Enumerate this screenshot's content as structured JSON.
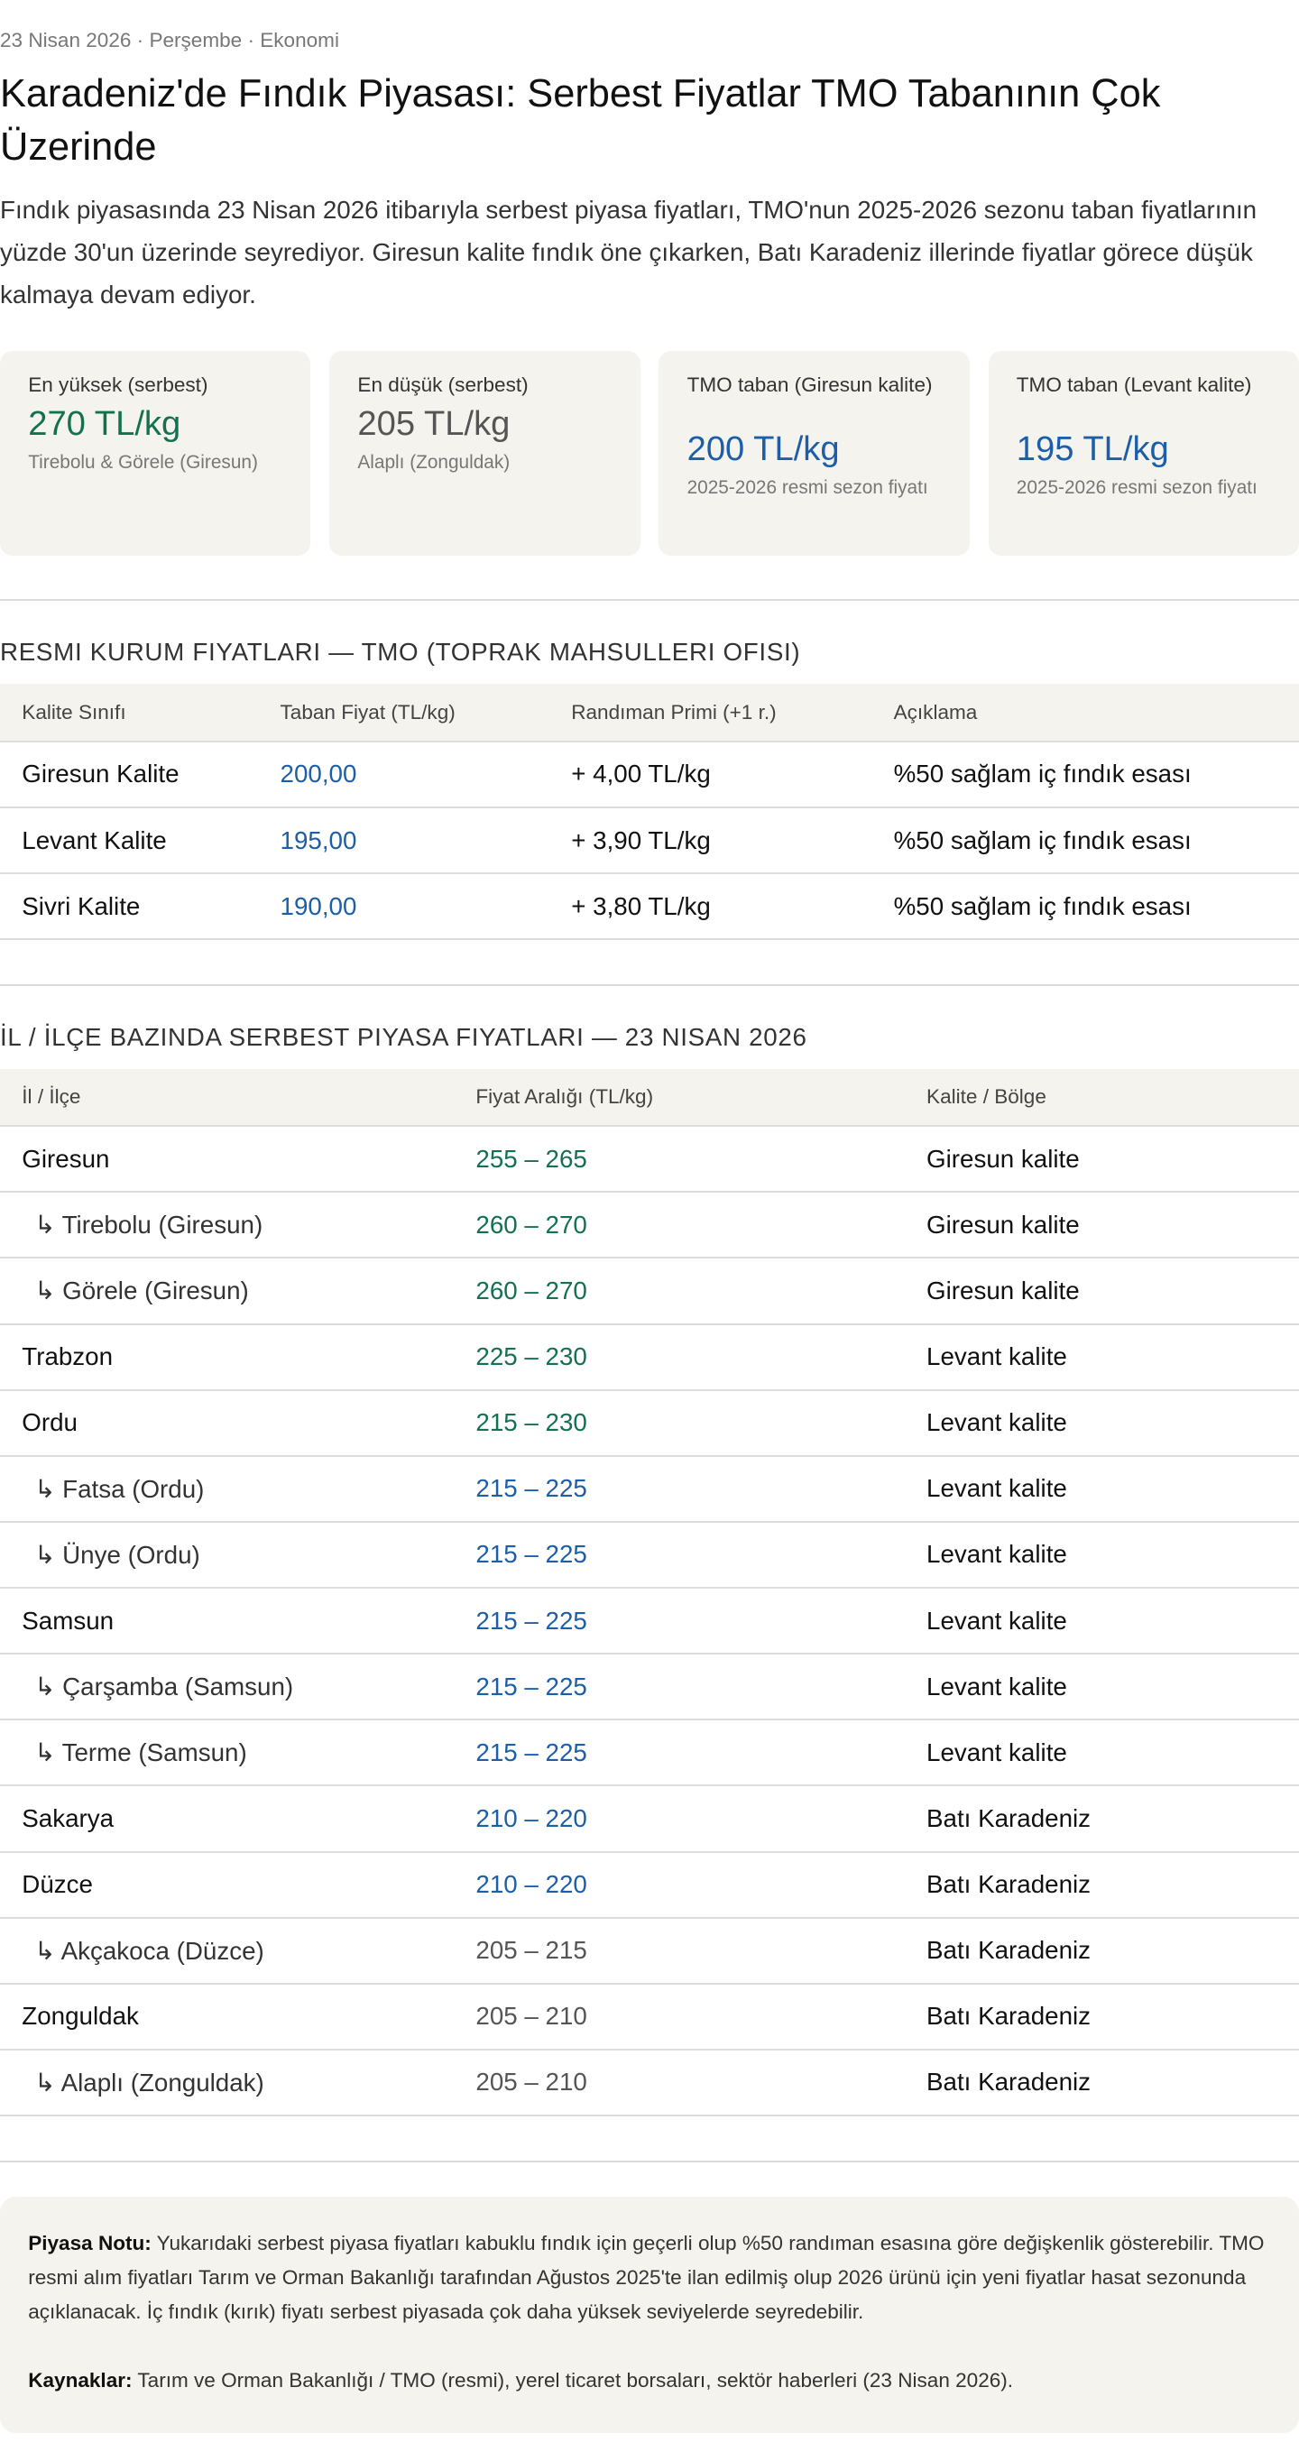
{
  "meta": "23 Nisan 2026 · Perşembe · Ekonomi",
  "title": "Karadeniz'de Fındık Piyasası: Serbest Fiyatlar TMO Tabanının Çok Üzerinde",
  "lede": "Fındık piyasasında 23 Nisan 2026 itibarıyla serbest piyasa fiyatları, TMO'nun 2025-2026 sezonu taban fiyatlarının yüzde 30'un üzerinde seyrediyor. Giresun kalite fındık öne çıkarken, Batı Karadeniz illerinde fiyatlar görece düşük kalmaya devam ediyor.",
  "colors": {
    "green": "#14714f",
    "blue": "#1d5ea8",
    "gray": "#555555",
    "card_bg": "#f4f3ee"
  },
  "cards": [
    {
      "label": "En yüksek (serbest)",
      "value": "270 TL/kg",
      "sub": "Tirebolu & Görele (Giresun)",
      "color": "green"
    },
    {
      "label": "En düşük (serbest)",
      "value": "205 TL/kg",
      "sub": "Alaplı (Zonguldak)",
      "color": "gray"
    },
    {
      "label": "TMO taban (Giresun kalite)",
      "value": "200 TL/kg",
      "sub": "2025-2026 resmi sezon fiyatı",
      "color": "blue"
    },
    {
      "label": "TMO taban (Levant kalite)",
      "value": "195 TL/kg",
      "sub": "2025-2026 resmi sezon fiyatı",
      "color": "blue"
    }
  ],
  "tmo": {
    "heading": "RESMI KURUM FIYATLARI — TMO (TOPRAK MAHSULLERI OFISI)",
    "columns": [
      "Kalite Sınıfı",
      "Taban Fiyat (TL/kg)",
      "Randıman Primi (+1 r.)",
      "Açıklama"
    ],
    "rows": [
      [
        "Giresun Kalite",
        "200,00",
        "+ 4,00 TL/kg",
        "%50 sağlam iç fındık esası"
      ],
      [
        "Levant Kalite",
        "195,00",
        "+ 3,90 TL/kg",
        "%50 sağlam iç fındık esası"
      ],
      [
        "Sivri Kalite",
        "190,00",
        "+ 3,80 TL/kg",
        "%50 sağlam iç fındık esası"
      ]
    ]
  },
  "market": {
    "heading": "İL / İLÇE BAZINDA SERBEST PIYASA FIYATLARI — 23 NISAN 2026",
    "columns": [
      "İl / İlçe",
      "Fiyat Aralığı (TL/kg)",
      "Kalite / Bölge"
    ],
    "rows": [
      {
        "name": "Giresun",
        "sub": false,
        "range": "255 – 265",
        "color": "green",
        "region": "Giresun kalite"
      },
      {
        "name": "↳ Tirebolu (Giresun)",
        "sub": true,
        "range": "260 – 270",
        "color": "green",
        "region": "Giresun kalite"
      },
      {
        "name": "↳ Görele (Giresun)",
        "sub": true,
        "range": "260 – 270",
        "color": "green",
        "region": "Giresun kalite"
      },
      {
        "name": "Trabzon",
        "sub": false,
        "range": "225 – 230",
        "color": "green",
        "region": "Levant kalite"
      },
      {
        "name": "Ordu",
        "sub": false,
        "range": "215 – 230",
        "color": "green",
        "region": "Levant kalite"
      },
      {
        "name": "↳ Fatsa (Ordu)",
        "sub": true,
        "range": "215 – 225",
        "color": "blue",
        "region": "Levant kalite"
      },
      {
        "name": "↳ Ünye (Ordu)",
        "sub": true,
        "range": "215 – 225",
        "color": "blue",
        "region": "Levant kalite"
      },
      {
        "name": "Samsun",
        "sub": false,
        "range": "215 – 225",
        "color": "blue",
        "region": "Levant kalite"
      },
      {
        "name": "↳ Çarşamba (Samsun)",
        "sub": true,
        "range": "215 – 225",
        "color": "blue",
        "region": "Levant kalite"
      },
      {
        "name": "↳ Terme (Samsun)",
        "sub": true,
        "range": "215 – 225",
        "color": "blue",
        "region": "Levant kalite"
      },
      {
        "name": "Sakarya",
        "sub": false,
        "range": "210 – 220",
        "color": "blue",
        "region": "Batı Karadeniz"
      },
      {
        "name": "Düzce",
        "sub": false,
        "range": "210 – 220",
        "color": "blue",
        "region": "Batı Karadeniz"
      },
      {
        "name": "↳ Akçakoca (Düzce)",
        "sub": true,
        "range": "205 – 215",
        "color": "gray",
        "region": "Batı Karadeniz"
      },
      {
        "name": "Zonguldak",
        "sub": false,
        "range": "205 – 210",
        "color": "gray",
        "region": "Batı Karadeniz"
      },
      {
        "name": "↳ Alaplı (Zonguldak)",
        "sub": true,
        "range": "205 – 210",
        "color": "gray",
        "region": "Batı Karadeniz"
      }
    ]
  },
  "note": {
    "label": "Piyasa Notu:",
    "text": " Yukarıdaki serbest piyasa fiyatları kabuklu fındık için geçerli olup %50 randıman esasına göre değişkenlik gösterebilir. TMO resmi alım fiyatları Tarım ve Orman Bakanlığı tarafından Ağustos 2025'te ilan edilmiş olup 2026 ürünü için yeni fiyatlar hasat sezonunda açıklanacak. İç fındık (kırık) fiyatı serbest piyasada çok daha yüksek seviyelerde seyredebilir.",
    "sources_label": "Kaynaklar:",
    "sources_text": " Tarım ve Orman Bakanlığı / TMO (resmi), yerel ticaret borsaları, sektör haberleri (23 Nisan 2026)."
  }
}
